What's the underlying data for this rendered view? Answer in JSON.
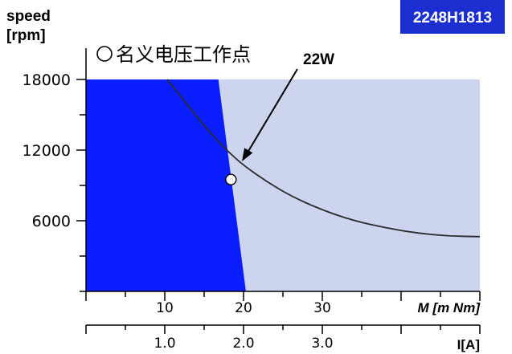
{
  "chart_data": {
    "type": "line",
    "ylabel_line1": "speed",
    "ylabel_line2": "[rpm]",
    "xlabel_torque": "M [m Nm]",
    "xlabel_current": "I[A]",
    "badge": "2248H1813",
    "legend_label": "名义电压工作点",
    "curve_label": "22W",
    "yticks": [
      6000,
      12000,
      18000
    ],
    "xticks_torque": [
      10,
      20,
      30
    ],
    "xticks_current": [
      "1.0",
      "2.0",
      "3.0"
    ],
    "xlim_torque": [
      0,
      50
    ],
    "ylim": [
      0,
      18000
    ],
    "colors": {
      "continuous_region": "#0a1eff",
      "intermittent_region": "#cdd4ee",
      "badge_bg": "#1b2ecf",
      "curve": "#2a2a2a"
    },
    "continuous_boundary": [
      {
        "torque": 16.8,
        "speed": 18000
      },
      {
        "torque": 20.3,
        "speed": 0
      }
    ],
    "power_curve": {
      "name": "22W",
      "points": [
        {
          "torque": 10.3,
          "speed": 18000
        },
        {
          "torque": 12,
          "speed": 16600
        },
        {
          "torque": 14,
          "speed": 14900
        },
        {
          "torque": 16,
          "speed": 13300
        },
        {
          "torque": 18,
          "speed": 11900
        },
        {
          "torque": 20,
          "speed": 10700
        },
        {
          "torque": 23,
          "speed": 9300
        },
        {
          "torque": 26,
          "speed": 8100
        },
        {
          "torque": 30,
          "speed": 6900
        },
        {
          "torque": 34,
          "speed": 6000
        },
        {
          "torque": 38,
          "speed": 5400
        },
        {
          "torque": 42,
          "speed": 4950
        },
        {
          "torque": 46,
          "speed": 4700
        },
        {
          "torque": 50,
          "speed": 4650
        }
      ]
    },
    "operating_point": {
      "torque": 18.4,
      "speed": 9500
    }
  }
}
